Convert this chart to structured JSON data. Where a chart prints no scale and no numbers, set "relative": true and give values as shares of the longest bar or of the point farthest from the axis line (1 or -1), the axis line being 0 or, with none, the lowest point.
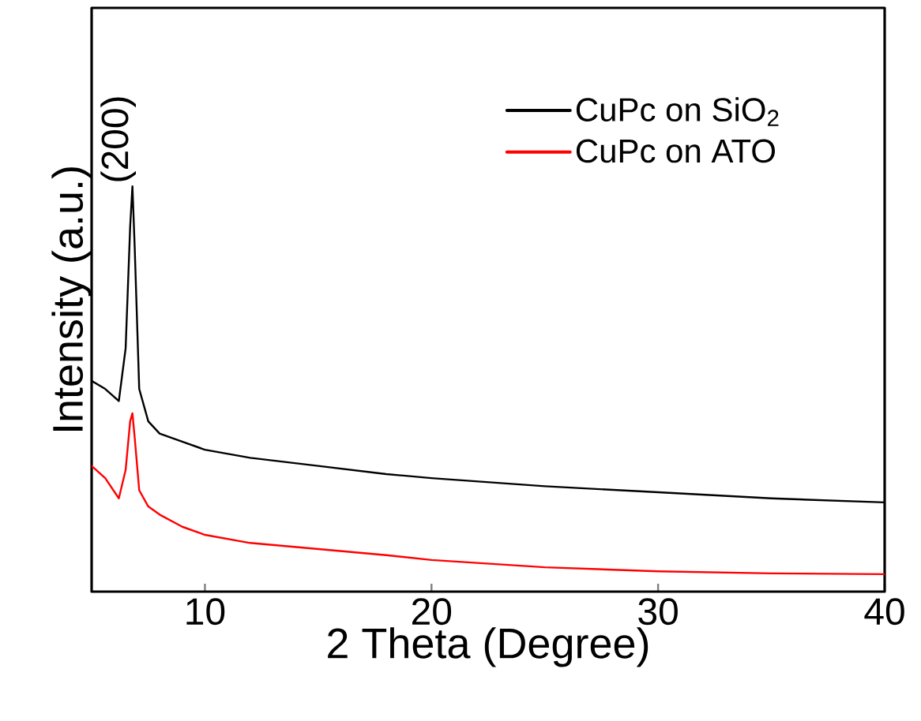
{
  "chart_data": {
    "type": "line",
    "xlabel": "2 Theta (Degree)",
    "ylabel": "Intensity (a.u.)",
    "relative": true,
    "xlim": [
      5,
      40
    ],
    "xticks": [
      10,
      20,
      30,
      40
    ],
    "tick_labels": "x",
    "legend": "top right",
    "annotations": [
      {
        "text": "(200)",
        "x": 6.8,
        "y": 1
      }
    ],
    "series": [
      {
        "name": "CuPc on SiO$_{2}$",
        "color": "#000000",
        "x": [
          5,
          5.6,
          6.2,
          6.5,
          6.7,
          6.8,
          6.9,
          7.1,
          7.5,
          8,
          9,
          10,
          12,
          15,
          18,
          20,
          25,
          30,
          35,
          40
        ],
        "values": [
          0.52,
          0.5,
          0.47,
          0.6,
          0.9,
          1,
          0.85,
          0.5,
          0.42,
          0.39,
          0.37,
          0.35,
          0.33,
          0.31,
          0.29,
          0.28,
          0.26,
          0.245,
          0.23,
          0.22
        ]
      },
      {
        "name": "CuPc on ATO",
        "color": "#ff0000",
        "x": [
          5,
          5.6,
          6.2,
          6.5,
          6.7,
          6.8,
          6.9,
          7.1,
          7.5,
          8,
          9,
          10,
          12,
          15,
          18,
          20,
          25,
          30,
          35,
          40
        ],
        "values": [
          0.31,
          0.28,
          0.23,
          0.3,
          0.42,
          0.44,
          0.38,
          0.25,
          0.21,
          0.19,
          0.16,
          0.14,
          0.12,
          0.105,
          0.09,
          0.078,
          0.06,
          0.05,
          0.045,
          0.043
        ]
      }
    ]
  }
}
